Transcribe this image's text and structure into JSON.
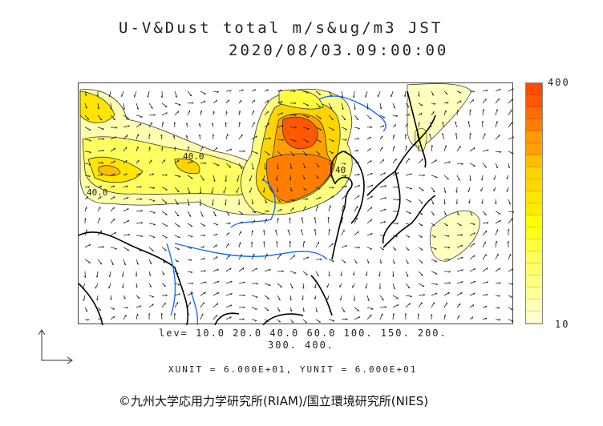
{
  "title": {
    "line1": "U-V&Dust total m/s&ug/m3 JST",
    "line2": "2020/08/03.09:00:00"
  },
  "colorbar": {
    "max_label": "400",
    "min_label": "10",
    "colors": [
      "#ff4a00",
      "#ff5800",
      "#ff6c00",
      "#ff7e00",
      "#ff9a00",
      "#ffa000",
      "#ffbf00",
      "#ffd500",
      "#ffd700",
      "#ffe500",
      "#ffea00",
      "#ffff00",
      "#ffff1e",
      "#ffff40",
      "#ffff5a",
      "#ffff6c",
      "#ffff80",
      "#ffff9e",
      "#ffffb8",
      "#ffffd2"
    ]
  },
  "contours": {
    "levels_line1": "lev= 10.0 20.0 40.0 60.0 100. 150. 200.",
    "levels_line2": "300. 400.",
    "label_a": "40.0",
    "label_b": "40.0",
    "label_c": "40"
  },
  "vector_units": "XUNIT = 6.000E+01, YUNIT = 6.000E+01",
  "credit": "©九州大学応用力学研究所(RIAM)/国立環境研究所(NIES)",
  "colors": {
    "coast": "#000000",
    "river": "#1a6cff",
    "contour": "#333333"
  }
}
